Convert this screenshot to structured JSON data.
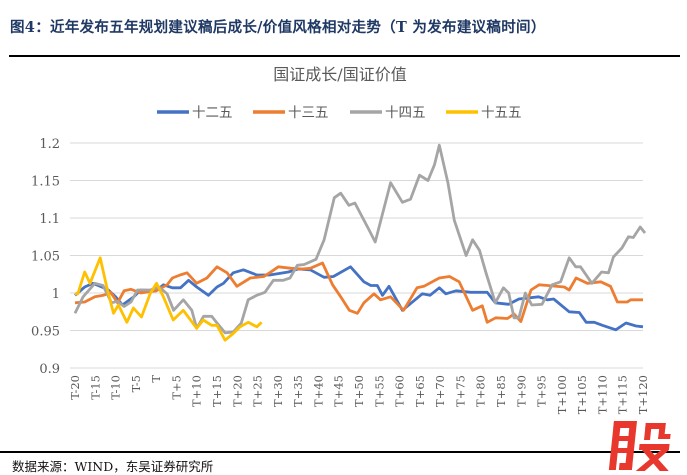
{
  "figure_title": "图4：近年发布五年规划建议稿后成长/价值风格相对走势（T 为发布建议稿时间）",
  "source": "数据来源：WIND，东吴证券研究所",
  "watermark": "股",
  "chart_data": {
    "type": "line",
    "title": "国证成长/国证价值",
    "xlabel": "",
    "ylabel": "",
    "ylim": [
      0.9,
      1.2
    ],
    "xlim": [
      -20,
      120
    ],
    "grid": true,
    "legend_position": "top",
    "y_ticks": [
      "0.9",
      "0.95",
      "1",
      "1.05",
      "1.1",
      "1.15",
      "1.2"
    ],
    "x_ticks": [
      "T-20",
      "T-15",
      "T-10",
      "T-5",
      "T",
      "T+5",
      "T+10",
      "T+15",
      "T+20",
      "T+25",
      "T+30",
      "T+35",
      "T+40",
      "T+45",
      "T+50",
      "T+55",
      "T+60",
      "T+65",
      "T+70",
      "T+75",
      "T+80",
      "T+85",
      "T+90",
      "T+95",
      "T+100",
      "T+105",
      "T+110",
      "T+115",
      "T+120"
    ],
    "series": [
      {
        "name": "十二五",
        "color": "#4472C4",
        "points": [
          [
            -20,
            0.997
          ],
          [
            -17.6,
            1.008
          ],
          [
            -15.6,
            1.013
          ],
          [
            -12,
            1.005
          ],
          [
            -10,
            0.995
          ],
          [
            -8.3,
            0.984
          ],
          [
            -5.5,
            0.995
          ],
          [
            -3.8,
            1.004
          ],
          [
            0,
            1.003
          ],
          [
            1.8,
            1.011
          ],
          [
            4,
            1.007
          ],
          [
            6,
            1.007
          ],
          [
            8,
            1.017
          ],
          [
            10,
            1.008
          ],
          [
            12.9,
            0.997
          ],
          [
            15,
            1.008
          ],
          [
            16.6,
            1.013
          ],
          [
            19,
            1.027
          ],
          [
            21.5,
            1.031
          ],
          [
            24.8,
            1.024
          ],
          [
            28,
            1.024
          ],
          [
            32.6,
            1.028
          ],
          [
            35,
            1.032
          ],
          [
            38,
            1.031
          ],
          [
            41.4,
            1.021
          ],
          [
            43.7,
            1.022
          ],
          [
            47.9,
            1.035
          ],
          [
            51.2,
            1.015
          ],
          [
            52.9,
            1.01
          ],
          [
            54.5,
            1.01
          ],
          [
            55.8,
            0.997
          ],
          [
            57.4,
            1.009
          ],
          [
            60.7,
            0.977
          ],
          [
            65.6,
            0.999
          ],
          [
            67.5,
            0.997
          ],
          [
            69.8,
            1.007
          ],
          [
            71.4,
            0.999
          ],
          [
            73.9,
            1.003
          ],
          [
            77.5,
            1.001
          ],
          [
            81.6,
            1.001
          ],
          [
            83.6,
            0.987
          ],
          [
            86.9,
            0.985
          ],
          [
            89.4,
            0.992
          ],
          [
            94.3,
            0.995
          ],
          [
            96.4,
            0.991
          ],
          [
            98,
            0.992
          ],
          [
            101.8,
            0.975
          ],
          [
            104.3,
            0.974
          ],
          [
            106,
            0.961
          ],
          [
            108,
            0.961
          ],
          [
            110,
            0.957
          ],
          [
            113.3,
            0.951
          ],
          [
            115.8,
            0.96
          ],
          [
            118.3,
            0.956
          ],
          [
            120,
            0.955
          ]
        ]
      },
      {
        "name": "十三五",
        "color": "#ED7D31",
        "points": [
          [
            -20,
            0.987
          ],
          [
            -17.6,
            0.988
          ],
          [
            -15.1,
            0.995
          ],
          [
            -13,
            0.997
          ],
          [
            -11.2,
            1.001
          ],
          [
            -9.5,
            0.987
          ],
          [
            -7.9,
            1.003
          ],
          [
            -6.2,
            1.005
          ],
          [
            -3.8,
            1.0
          ],
          [
            0,
            1.003
          ],
          [
            2.7,
            1.011
          ],
          [
            4,
            1.02
          ],
          [
            5.9,
            1.024
          ],
          [
            7.6,
            1.027
          ],
          [
            10,
            1.013
          ],
          [
            12.5,
            1.02
          ],
          [
            15,
            1.035
          ],
          [
            17.5,
            1.027
          ],
          [
            19.9,
            1.009
          ],
          [
            23.2,
            1.02
          ],
          [
            26.5,
            1.022
          ],
          [
            28,
            1.027
          ],
          [
            30.1,
            1.035
          ],
          [
            33.3,
            1.033
          ],
          [
            36,
            1.032
          ],
          [
            38,
            1.033
          ],
          [
            41,
            1.04
          ],
          [
            43.5,
            1.011
          ],
          [
            45.5,
            0.995
          ],
          [
            47.6,
            0.977
          ],
          [
            49.6,
            0.973
          ],
          [
            51.2,
            0.987
          ],
          [
            53.7,
            0.999
          ],
          [
            55.3,
            0.991
          ],
          [
            57.8,
            0.995
          ],
          [
            61,
            0.977
          ],
          [
            64.3,
            1.007
          ],
          [
            66,
            1.009
          ],
          [
            69.8,
            1.02
          ],
          [
            72.3,
            1.022
          ],
          [
            74.7,
            1.015
          ],
          [
            78,
            0.977
          ],
          [
            80.4,
            0.983
          ],
          [
            81.6,
            0.961
          ],
          [
            83.7,
            0.967
          ],
          [
            86.6,
            0.966
          ],
          [
            88.2,
            0.972
          ],
          [
            89.9,
            0.962
          ],
          [
            92.4,
            1.004
          ],
          [
            94.4,
            1.011
          ],
          [
            96.5,
            1.01
          ],
          [
            100.6,
            1.008
          ],
          [
            101.8,
            1.004
          ],
          [
            103.5,
            1.02
          ],
          [
            106.3,
            1.013
          ],
          [
            109.6,
            1.015
          ],
          [
            112,
            1.009
          ],
          [
            113.7,
            0.988
          ],
          [
            116.1,
            0.988
          ],
          [
            117,
            0.991
          ],
          [
            120,
            0.991
          ]
        ]
      },
      {
        "name": "十四五",
        "color": "#A5A5A5",
        "points": [
          [
            -20,
            0.973
          ],
          [
            -18,
            0.995
          ],
          [
            -15.1,
            1.013
          ],
          [
            -13.1,
            1.01
          ],
          [
            -11,
            0.987
          ],
          [
            -9.5,
            0.989
          ],
          [
            -7.9,
            0.982
          ],
          [
            -6.2,
            0.988
          ],
          [
            -4.6,
            1.004
          ],
          [
            -1.4,
            1.004
          ],
          [
            0.7,
            1.008
          ],
          [
            2.7,
            0.999
          ],
          [
            4.3,
            0.977
          ],
          [
            6.7,
            0.991
          ],
          [
            8.8,
            0.977
          ],
          [
            10,
            0.953
          ],
          [
            11.7,
            0.969
          ],
          [
            13.7,
            0.969
          ],
          [
            15,
            0.96
          ],
          [
            17,
            0.947
          ],
          [
            19,
            0.948
          ],
          [
            21,
            0.96
          ],
          [
            22.7,
            0.991
          ],
          [
            24.8,
            0.997
          ],
          [
            26.8,
            1.001
          ],
          [
            28.9,
            1.017
          ],
          [
            31.3,
            1.017
          ],
          [
            33,
            1.02
          ],
          [
            34.8,
            1.037
          ],
          [
            36.5,
            1.038
          ],
          [
            39.4,
            1.045
          ],
          [
            41.4,
            1.071
          ],
          [
            43.9,
            1.127
          ],
          [
            45.5,
            1.133
          ],
          [
            47.5,
            1.117
          ],
          [
            49,
            1.12
          ],
          [
            52.5,
            1.084
          ],
          [
            54,
            1.068
          ],
          [
            57.8,
            1.147
          ],
          [
            60.7,
            1.121
          ],
          [
            62.7,
            1.125
          ],
          [
            64.9,
            1.157
          ],
          [
            67,
            1.15
          ],
          [
            68.6,
            1.171
          ],
          [
            69.8,
            1.197
          ],
          [
            71.9,
            1.147
          ],
          [
            73.5,
            1.097
          ],
          [
            76.4,
            1.05
          ],
          [
            78,
            1.071
          ],
          [
            79.7,
            1.057
          ],
          [
            81.3,
            1.027
          ],
          [
            83.6,
            0.987
          ],
          [
            85.6,
            1.007
          ],
          [
            86.9,
            1.0
          ],
          [
            88.2,
            0.967
          ],
          [
            89.4,
            0.967
          ],
          [
            91,
            1.0
          ],
          [
            92.6,
            0.984
          ],
          [
            95.1,
            0.985
          ],
          [
            97.6,
            1.011
          ],
          [
            99.7,
            1.015
          ],
          [
            101.8,
            1.047
          ],
          [
            103.4,
            1.035
          ],
          [
            104.6,
            1.035
          ],
          [
            107.4,
            1.013
          ],
          [
            109.8,
            1.028
          ],
          [
            111.5,
            1.027
          ],
          [
            112.7,
            1.048
          ],
          [
            114.8,
            1.06
          ],
          [
            116.4,
            1.075
          ],
          [
            117.6,
            1.074
          ],
          [
            119.3,
            1.088
          ],
          [
            120.5,
            1.08
          ]
        ]
      },
      {
        "name": "十五五",
        "color": "#FFC000",
        "points": [
          [
            -20,
            0.999
          ],
          [
            -19.3,
            0.999
          ],
          [
            -17.6,
            1.028
          ],
          [
            -16.3,
            1.013
          ],
          [
            -13.8,
            1.047
          ],
          [
            -12.2,
            1.009
          ],
          [
            -10.5,
            0.973
          ],
          [
            -9.3,
            0.984
          ],
          [
            -7.2,
            0.961
          ],
          [
            -5.6,
            0.98
          ],
          [
            -3.6,
            0.968
          ],
          [
            -1.5,
            0.999
          ],
          [
            0.1,
            1.013
          ],
          [
            1.8,
            0.995
          ],
          [
            4.2,
            0.964
          ],
          [
            6.7,
            0.977
          ],
          [
            10,
            0.953
          ],
          [
            11.6,
            0.964
          ],
          [
            13.7,
            0.957
          ],
          [
            15,
            0.957
          ],
          [
            17,
            0.937
          ],
          [
            19,
            0.946
          ],
          [
            20.7,
            0.955
          ],
          [
            22.7,
            0.961
          ],
          [
            24.8,
            0.955
          ],
          [
            26,
            0.961
          ]
        ]
      }
    ]
  }
}
